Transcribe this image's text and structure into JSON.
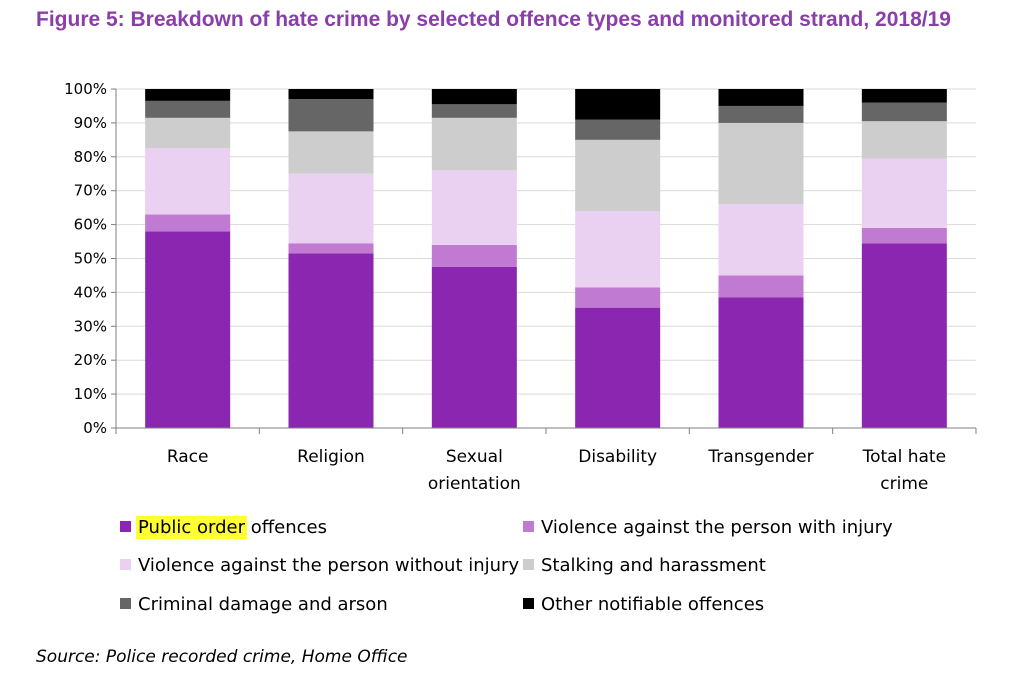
{
  "title": "Figure 5: Breakdown of hate crime by selected offence types and monitored strand, 2018/19",
  "source": "Source: Police recorded crime, Home Office",
  "highlighted_text": "Public order",
  "chart_data": {
    "type": "bar",
    "stacked": true,
    "title": "Figure 5: Breakdown of hate crime by selected offence types and monitored strand, 2018/19",
    "xlabel": "",
    "ylabel": "",
    "ylim": [
      0,
      100
    ],
    "yticks": [
      "0%",
      "10%",
      "20%",
      "30%",
      "40%",
      "50%",
      "60%",
      "70%",
      "80%",
      "90%",
      "100%"
    ],
    "categories": [
      [
        "Race"
      ],
      [
        "Religion"
      ],
      [
        "Sexual",
        "orientation"
      ],
      [
        "Disability"
      ],
      [
        "Transgender"
      ],
      [
        "Total hate",
        "crime"
      ]
    ],
    "series": [
      {
        "name": "Public order offences",
        "color": "#8b26b0",
        "values": [
          58,
          51.5,
          47.5,
          35.5,
          38.5,
          54.5
        ]
      },
      {
        "name": "Violence against the person with injury",
        "color": "#c07ad2",
        "values": [
          5,
          3,
          6.5,
          6,
          6.5,
          4.5
        ]
      },
      {
        "name": "Violence against the person without injury",
        "color": "#ead1f2",
        "values": [
          19.5,
          20.5,
          22,
          22.5,
          21,
          20.5
        ]
      },
      {
        "name": "Stalking and harassment",
        "color": "#cdcdcd",
        "values": [
          9,
          12.5,
          15.5,
          21,
          24,
          11
        ]
      },
      {
        "name": "Criminal damage and arson",
        "color": "#666666",
        "values": [
          5,
          9.5,
          4,
          6,
          5,
          5.5
        ]
      },
      {
        "name": "Other notifiable offences",
        "color": "#000000",
        "values": [
          3.5,
          3,
          4.5,
          9,
          5,
          4
        ]
      }
    ],
    "legend": {
      "placement": "bottom",
      "columns": 2,
      "order": [
        0,
        1,
        2,
        3,
        4,
        5
      ]
    },
    "grid": true
  }
}
